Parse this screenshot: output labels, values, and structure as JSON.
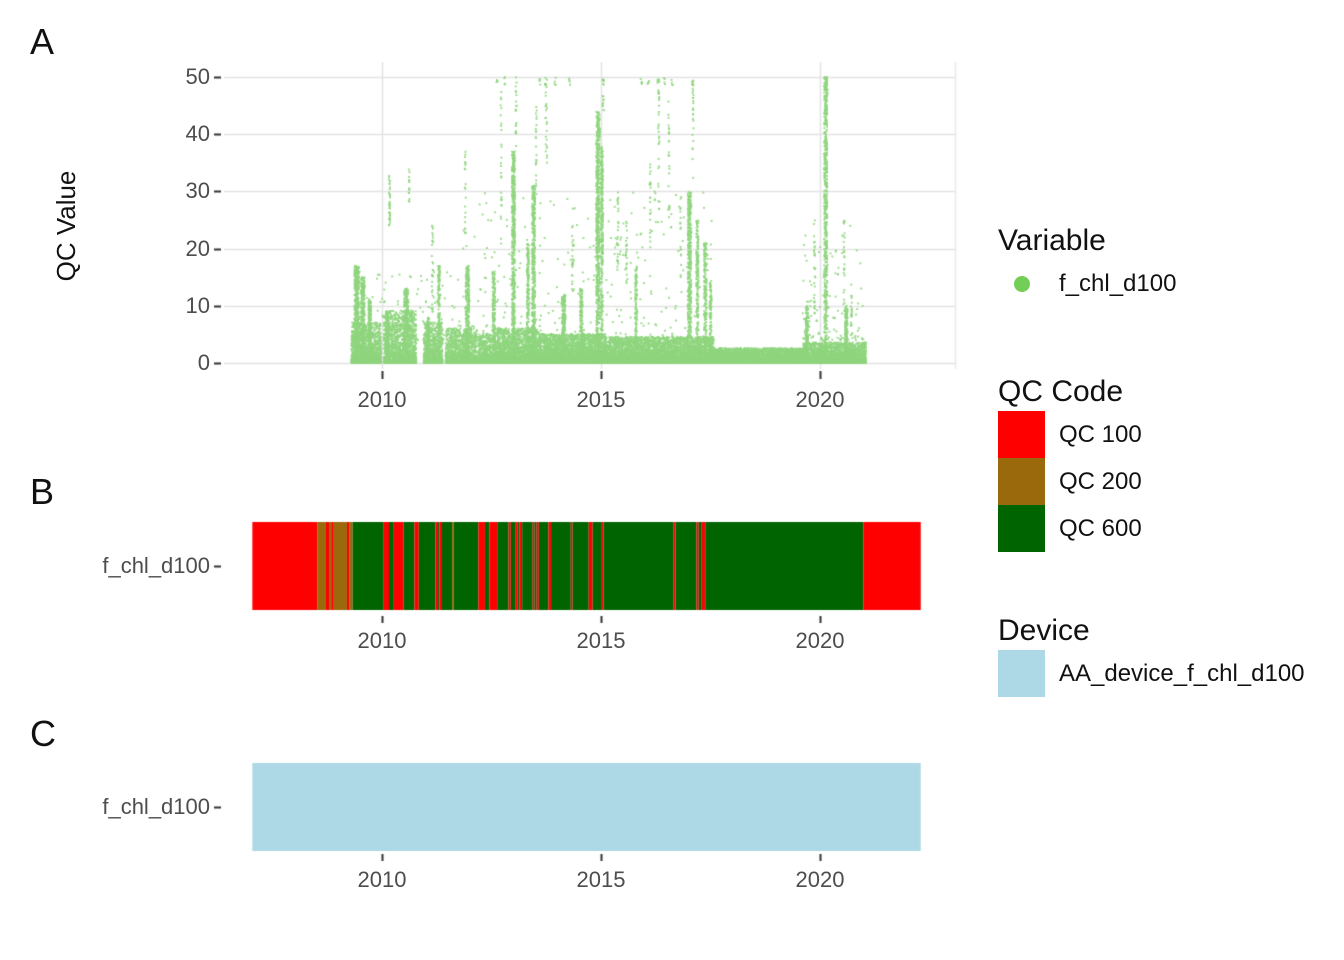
{
  "figure": {
    "background": "#FFFFFF",
    "panels": {
      "A": {
        "label": "A",
        "y_axis_title": "QC Value"
      },
      "B": {
        "label": "B",
        "row_label": "f_chl_d100"
      },
      "C": {
        "label": "C",
        "row_label": "f_chl_d100"
      }
    }
  },
  "legends": {
    "variable": {
      "title": "Variable",
      "items": [
        {
          "label": "f_chl_d100",
          "color": "#73CE57",
          "shape": "dot"
        }
      ]
    },
    "qc_code": {
      "title": "QC Code",
      "items": [
        {
          "label": "QC 100",
          "color": "#FF0000"
        },
        {
          "label": "QC 200",
          "color": "#99690B"
        },
        {
          "label": "QC 600",
          "color": "#006400"
        }
      ]
    },
    "device": {
      "title": "Device",
      "items": [
        {
          "label": "AA_device_f_chl_d100",
          "color": "#ADD8E6"
        }
      ]
    }
  },
  "chart_data": [
    {
      "id": "A",
      "type": "scatter",
      "title": "",
      "xlabel": "",
      "ylabel": "QC Value",
      "legend_position": "right",
      "grid": true,
      "series": [
        {
          "name": "f_chl_d100",
          "color": "#8FD57E"
        }
      ],
      "xlim": [
        2006.4,
        2023.1
      ],
      "ylim": [
        0,
        50
      ],
      "x_ticks": [
        "2010",
        "2015",
        "2020"
      ],
      "x_tick_years": [
        2010,
        2015,
        2020
      ],
      "y_ticks": [
        0,
        10,
        20,
        30,
        40,
        50
      ],
      "data_x_range": [
        2009.3,
        2021.05
      ],
      "baseline_bands": [
        [
          2009.3,
          2009.98,
          7,
          1500
        ],
        [
          2010.04,
          2010.78,
          9,
          1600
        ],
        [
          2010.95,
          2011.38,
          7,
          850
        ],
        [
          2011.45,
          2012.18,
          6,
          1300
        ],
        [
          2012.2,
          2012.62,
          5,
          750
        ],
        [
          2012.62,
          2013.58,
          6,
          2100
        ],
        [
          2013.58,
          2015.1,
          5,
          3600
        ],
        [
          2015.1,
          2017.58,
          4.5,
          5600
        ],
        [
          2017.58,
          2019.62,
          2.5,
          4500
        ],
        [
          2019.62,
          2021.05,
          3.5,
          2800
        ]
      ],
      "dense_spikes": [
        [
          2009.42,
          0.05,
          17,
          450
        ],
        [
          2009.56,
          0.04,
          15,
          300
        ],
        [
          2009.72,
          0.03,
          11,
          180
        ],
        [
          2010.12,
          0.03,
          9,
          150
        ],
        [
          2010.55,
          0.05,
          13,
          300
        ],
        [
          2011.05,
          0.03,
          8,
          130
        ],
        [
          2011.3,
          0.02,
          17,
          140
        ],
        [
          2011.95,
          0.04,
          17,
          260
        ],
        [
          2012.55,
          0.03,
          16,
          180
        ],
        [
          2013.0,
          0.035,
          37,
          500
        ],
        [
          2013.33,
          0.025,
          21,
          180
        ],
        [
          2013.46,
          0.035,
          31,
          400
        ],
        [
          2014.15,
          0.04,
          12,
          220
        ],
        [
          2014.55,
          0.03,
          13,
          140
        ],
        [
          2014.93,
          0.04,
          44,
          650
        ],
        [
          2015.02,
          0.025,
          38,
          280
        ],
        [
          2015.8,
          0.02,
          17,
          110
        ],
        [
          2017.02,
          0.04,
          30,
          400
        ],
        [
          2017.2,
          0.025,
          25,
          180
        ],
        [
          2017.38,
          0.03,
          21,
          180
        ],
        [
          2017.5,
          0.02,
          14,
          110
        ],
        [
          2019.7,
          0.03,
          10,
          140
        ],
        [
          2020.13,
          0.035,
          50,
          550
        ],
        [
          2020.6,
          0.03,
          10,
          130
        ]
      ],
      "sparse_spikes": [
        [
          2010.17,
          0.015,
          24,
          33,
          35
        ],
        [
          2010.62,
          0.01,
          28,
          34,
          14
        ],
        [
          2011.15,
          0.015,
          8,
          25,
          28
        ],
        [
          2011.9,
          0.012,
          20,
          37,
          22
        ],
        [
          2012.72,
          0.012,
          20,
          50,
          28
        ],
        [
          2013.06,
          0.012,
          37,
          50,
          22
        ],
        [
          2013.52,
          0.012,
          30,
          45,
          22
        ],
        [
          2013.75,
          0.02,
          35,
          50,
          26
        ],
        [
          2014.35,
          0.015,
          12,
          25,
          22
        ],
        [
          2015.05,
          0.015,
          44,
          50,
          18
        ],
        [
          2015.38,
          0.015,
          15,
          30,
          26
        ],
        [
          2015.58,
          0.015,
          12,
          25,
          22
        ],
        [
          2016.12,
          0.012,
          20,
          35,
          22
        ],
        [
          2016.32,
          0.015,
          25,
          50,
          30
        ],
        [
          2016.55,
          0.015,
          25,
          46,
          26
        ],
        [
          2016.82,
          0.012,
          15,
          30,
          18
        ],
        [
          2017.1,
          0.012,
          30,
          50,
          26
        ],
        [
          2019.87,
          0.015,
          8,
          25,
          26
        ],
        [
          2020.16,
          0.012,
          44,
          50,
          14
        ],
        [
          2020.55,
          0.015,
          10,
          25,
          26
        ],
        [
          2020.72,
          0.015,
          5,
          12,
          18
        ]
      ],
      "top_dots": {
        "y_range": [
          48.6,
          50
        ],
        "per_cluster": 4,
        "clusters": [
          2012.62,
          2012.8,
          2013.6,
          2013.72,
          2013.95,
          2014.28,
          2015.92,
          2016.08,
          2016.3,
          2016.45,
          2016.62,
          2017.08,
          2020.15
        ]
      },
      "noise_bands": [
        [
          2011.8,
          2017.6,
          4,
          30,
          320
        ],
        [
          2009.35,
          2011.8,
          4,
          16,
          140
        ],
        [
          2019.6,
          2021.0,
          4,
          24,
          110
        ]
      ]
    },
    {
      "id": "B",
      "type": "qc-timeline",
      "row": "f_chl_d100",
      "x_ticks": [
        "2010",
        "2015",
        "2020"
      ],
      "x_tick_years": [
        2010,
        2015,
        2020
      ],
      "x_range": [
        2007.04,
        2022.3
      ],
      "colors": {
        "100": "#FF0000",
        "200": "#99690B",
        "600": "#006400"
      },
      "segments": [
        [
          2007.04,
          2008.52,
          100
        ],
        [
          2008.52,
          2008.72,
          200
        ],
        [
          2008.72,
          2008.79,
          100
        ],
        [
          2008.79,
          2008.84,
          200
        ],
        [
          2008.84,
          2008.9,
          100
        ],
        [
          2008.9,
          2009.2,
          200
        ],
        [
          2009.2,
          2009.25,
          100
        ],
        [
          2009.25,
          2009.33,
          200
        ],
        [
          2009.33,
          2010.04,
          600
        ],
        [
          2010.04,
          2010.16,
          100
        ],
        [
          2010.16,
          2010.27,
          600
        ],
        [
          2010.27,
          2010.49,
          100
        ],
        [
          2010.49,
          2010.74,
          600
        ],
        [
          2010.74,
          2010.84,
          100
        ],
        [
          2010.84,
          2011.22,
          600
        ],
        [
          2011.22,
          2011.28,
          100
        ],
        [
          2011.28,
          2011.31,
          600
        ],
        [
          2011.31,
          2011.37,
          100
        ],
        [
          2011.37,
          2011.6,
          600
        ],
        [
          2011.6,
          2011.64,
          200
        ],
        [
          2011.64,
          2012.2,
          600
        ],
        [
          2012.2,
          2012.35,
          100
        ],
        [
          2012.35,
          2012.45,
          600
        ],
        [
          2012.45,
          2012.63,
          100
        ],
        [
          2012.63,
          2012.89,
          600
        ],
        [
          2012.89,
          2012.94,
          100
        ],
        [
          2012.94,
          2013.04,
          600
        ],
        [
          2013.04,
          2013.1,
          100
        ],
        [
          2013.1,
          2013.14,
          600
        ],
        [
          2013.14,
          2013.2,
          100
        ],
        [
          2013.2,
          2013.44,
          600
        ],
        [
          2013.44,
          2013.48,
          100
        ],
        [
          2013.48,
          2013.53,
          600
        ],
        [
          2013.53,
          2013.58,
          100
        ],
        [
          2013.58,
          2013.8,
          600
        ],
        [
          2013.8,
          2013.86,
          100
        ],
        [
          2013.86,
          2014.31,
          600
        ],
        [
          2014.31,
          2014.35,
          100
        ],
        [
          2014.35,
          2014.72,
          600
        ],
        [
          2014.72,
          2014.81,
          100
        ],
        [
          2014.81,
          2015.02,
          600
        ],
        [
          2015.02,
          2015.06,
          100
        ],
        [
          2015.06,
          2016.66,
          600
        ],
        [
          2016.66,
          2016.7,
          100
        ],
        [
          2016.7,
          2017.18,
          600
        ],
        [
          2017.18,
          2017.23,
          100
        ],
        [
          2017.23,
          2017.3,
          600
        ],
        [
          2017.3,
          2017.38,
          100
        ],
        [
          2017.38,
          2020.99,
          600
        ],
        [
          2020.99,
          2022.3,
          100
        ]
      ]
    },
    {
      "id": "C",
      "type": "device-timeline",
      "row": "f_chl_d100",
      "x_ticks": [
        "2010",
        "2015",
        "2020"
      ],
      "x_tick_years": [
        2010,
        2015,
        2020
      ],
      "x_range": [
        2007.04,
        2022.3
      ],
      "segments": [
        {
          "start": 2007.04,
          "end": 2022.3,
          "device": "AA_device_f_chl_d100",
          "color": "#ADD8E6"
        }
      ]
    }
  ]
}
